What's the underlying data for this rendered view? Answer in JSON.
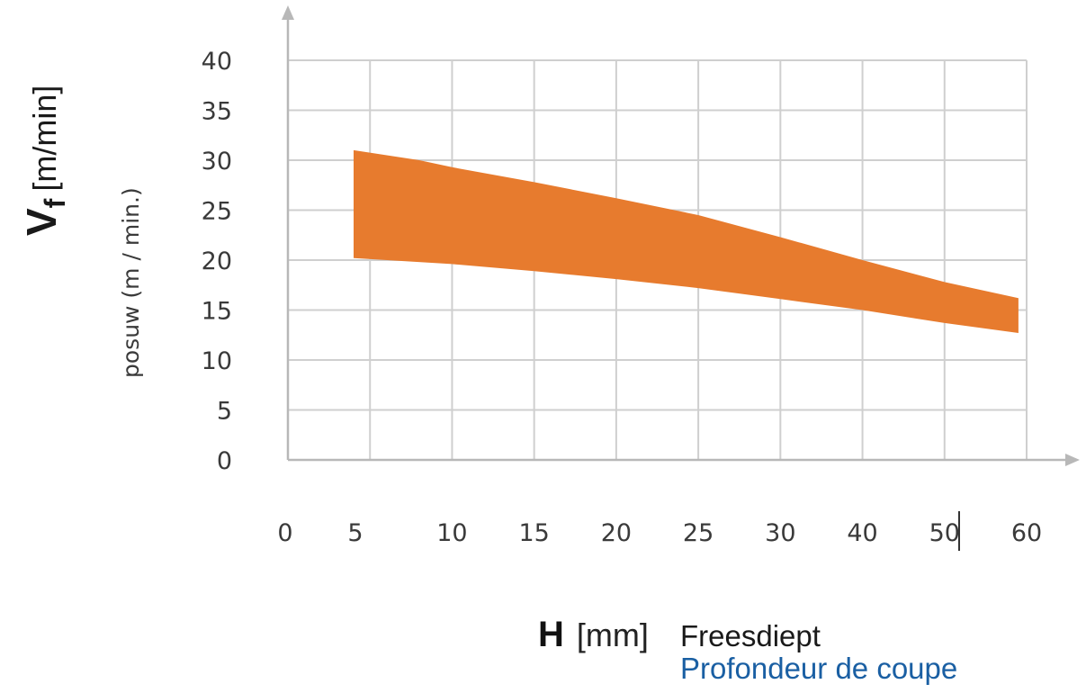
{
  "chart_data": {
    "type": "area",
    "ylabel": {
      "symbol": "V",
      "subscript": "f",
      "unit": "[m/min]",
      "secondary": "posuw (m / min.)"
    },
    "xlabel": {
      "symbol": "H",
      "unit": "[mm]",
      "line1": "Freesdiept",
      "line2": "Profondeur de coupe"
    },
    "x_ticks": [
      "0",
      "5",
      "10",
      "15",
      "20",
      "25",
      "30",
      "40",
      "50",
      "60"
    ],
    "y_ticks": [
      "0",
      "5",
      "10",
      "15",
      "20",
      "25",
      "30",
      "35",
      "40"
    ],
    "ylim": [
      0,
      40
    ],
    "grid": true,
    "band": {
      "name": "",
      "color": "#e77b2e",
      "upper": [
        {
          "x": 4,
          "y": 31
        },
        {
          "x": 8,
          "y": 30
        },
        {
          "x": 10,
          "y": 29.3
        },
        {
          "x": 15,
          "y": 27.8
        },
        {
          "x": 20,
          "y": 26.2
        },
        {
          "x": 25,
          "y": 24.5
        },
        {
          "x": 30,
          "y": 22.3
        },
        {
          "x": 40,
          "y": 20
        },
        {
          "x": 50,
          "y": 17.8
        },
        {
          "x": 59,
          "y": 16.2
        }
      ],
      "lower": [
        {
          "x": 4,
          "y": 20.2
        },
        {
          "x": 10,
          "y": 19.6
        },
        {
          "x": 15,
          "y": 18.9
        },
        {
          "x": 20,
          "y": 18.1
        },
        {
          "x": 25,
          "y": 17.2
        },
        {
          "x": 30,
          "y": 16.1
        },
        {
          "x": 40,
          "y": 15
        },
        {
          "x": 50,
          "y": 13.7
        },
        {
          "x": 59,
          "y": 12.7
        }
      ]
    },
    "colors": {
      "band": "#e77b2e",
      "grid": "#cfcfcf",
      "axis": "#b8b8b8",
      "secondary_label": "#1a5fa3"
    }
  }
}
